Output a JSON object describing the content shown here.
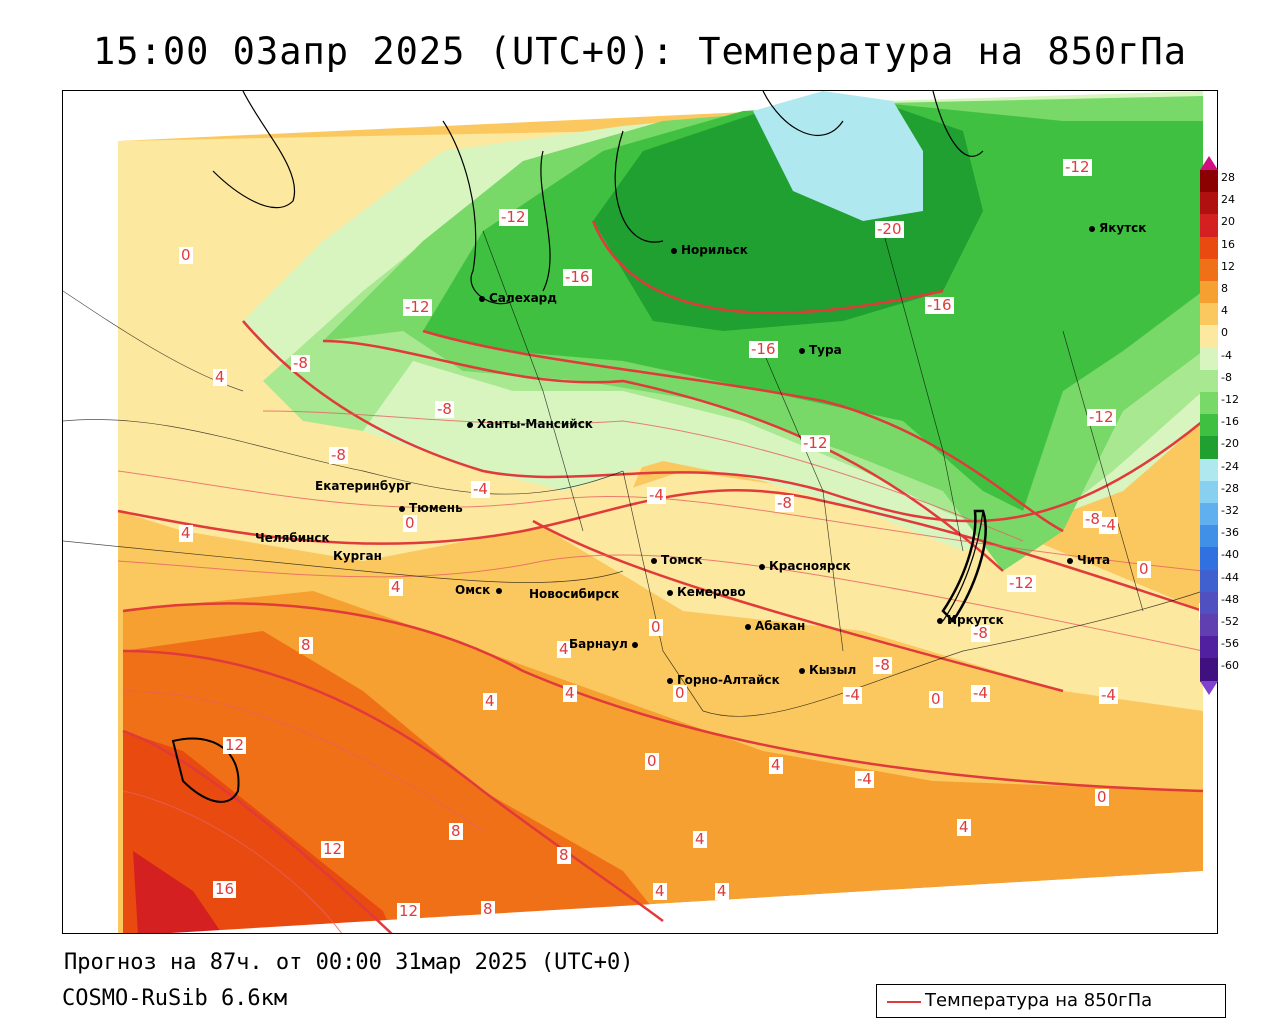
{
  "title": "15:00 03апр 2025 (UTC+0): Температура на 850гПа",
  "footer": {
    "forecast": "Прогноз на 87ч. от 00:00 31мар 2025 (UTC+0)",
    "model": "COSMO-RuSib 6.6км"
  },
  "legend": {
    "label": "Температура на 850гПа",
    "line_color": "#e03a3a"
  },
  "cities": [
    {
      "id": "norilsk",
      "name": "Норильск"
    },
    {
      "id": "yakutsk",
      "name": "Якутск"
    },
    {
      "id": "salekhard",
      "name": "Салехард"
    },
    {
      "id": "tura",
      "name": "Тура"
    },
    {
      "id": "khanty",
      "name": "Ханты-Мансийск"
    },
    {
      "id": "yekaterinburg",
      "name": "Екатеринбург"
    },
    {
      "id": "tyumen",
      "name": "Тюмень"
    },
    {
      "id": "chelyabinsk",
      "name": "Челябинск"
    },
    {
      "id": "kurgan",
      "name": "Курган"
    },
    {
      "id": "omsk",
      "name": "Омск"
    },
    {
      "id": "novosibirsk",
      "name": "Новосибирск"
    },
    {
      "id": "tomsk",
      "name": "Томск"
    },
    {
      "id": "krasnoyarsk",
      "name": "Красноярск"
    },
    {
      "id": "kemerovo",
      "name": "Кемерово"
    },
    {
      "id": "abakan",
      "name": "Абакан"
    },
    {
      "id": "barnaul",
      "name": "Барнаул"
    },
    {
      "id": "gorno",
      "name": "Горно-Алтайск"
    },
    {
      "id": "kyzyl",
      "name": "Кызыл"
    },
    {
      "id": "irkutsk",
      "name": "Иркутск"
    },
    {
      "id": "chita",
      "name": "Чита"
    }
  ],
  "isotherm_labels": [
    "-12",
    "-20",
    "-16",
    "-16",
    "-12",
    "-16",
    "-12",
    "-12",
    "-8",
    "-8",
    "-8",
    "-12",
    "-8",
    "-4",
    "-4",
    "-8",
    "-4",
    "-4",
    "-12",
    "-8",
    "-8",
    "-4",
    "-4",
    "-4",
    "0",
    "0",
    "0",
    "0",
    "0",
    "0",
    "0",
    "0",
    "4",
    "4",
    "4",
    "4",
    "4",
    "4",
    "4",
    "4",
    "4",
    "4",
    "4",
    "8",
    "8",
    "8",
    "8",
    "8",
    "12",
    "12",
    "12",
    "16"
  ],
  "color_scale": {
    "labels": [
      "28",
      "24",
      "20",
      "16",
      "12",
      "8",
      "4",
      "0",
      "-4",
      "-8",
      "-12",
      "-16",
      "-20",
      "-24",
      "-28",
      "-32",
      "-36",
      "-40",
      "-44",
      "-48",
      "-52",
      "-56",
      "-60"
    ],
    "colors": [
      "#8b0000",
      "#b01010",
      "#d42020",
      "#e84a10",
      "#f07018",
      "#f5a030",
      "#fbc860",
      "#fde8a0",
      "#d8f5c0",
      "#a8e890",
      "#78d868",
      "#40c040",
      "#1fa030",
      "#b0e8f0",
      "#88d0f0",
      "#60b0f0",
      "#4090e8",
      "#3070e0",
      "#4060d0",
      "#5050c0",
      "#6040b0",
      "#5020a0",
      "#401080"
    ]
  }
}
